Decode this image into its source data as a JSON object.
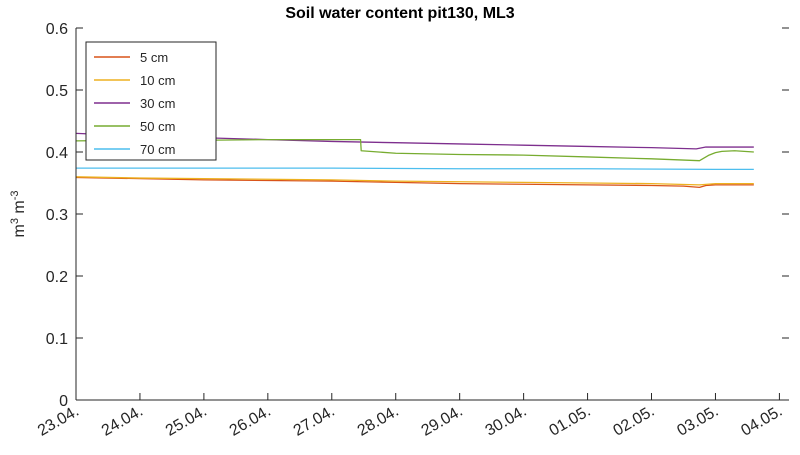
{
  "chart_data": {
    "type": "line",
    "title": "Soil water content pit130, ML3",
    "ylabel": {
      "base": "m",
      "exp1": "3",
      "mid": " m",
      "exp2": "-3"
    },
    "xlabel": "",
    "ylim": [
      0,
      0.6
    ],
    "yticks": [
      0,
      0.1,
      0.2,
      0.3,
      0.4,
      0.5,
      0.6
    ],
    "ytick_labels": [
      "0",
      "0.1",
      "0.2",
      "0.3",
      "0.4",
      "0.5",
      "0.6"
    ],
    "xlim": [
      0,
      11.15
    ],
    "xticks": [
      0,
      1,
      2,
      3,
      4,
      5,
      6,
      7,
      8,
      9,
      10,
      11
    ],
    "xtick_labels": [
      "23.04.",
      "24.04.",
      "25.04.",
      "26.04.",
      "27.04.",
      "28.04.",
      "29.04.",
      "30.04.",
      "01.05.",
      "02.05.",
      "03.05.",
      "04.05."
    ],
    "x_unit": "days from 23.04.",
    "legend_position": "top-left",
    "grid": false,
    "series": [
      {
        "name": "5 cm",
        "color": "#D95319",
        "x": [
          0,
          1,
          2,
          3,
          4,
          5,
          6,
          7,
          8,
          9,
          9.5,
          9.75,
          9.85,
          10,
          10.6
        ],
        "y": [
          0.359,
          0.357,
          0.355,
          0.354,
          0.353,
          0.351,
          0.349,
          0.348,
          0.347,
          0.346,
          0.345,
          0.343,
          0.346,
          0.347,
          0.347
        ]
      },
      {
        "name": "10 cm",
        "color": "#EDB120",
        "x": [
          0,
          1,
          2,
          3,
          4,
          5,
          6,
          7,
          8,
          9,
          9.75,
          10,
          10.6
        ],
        "y": [
          0.36,
          0.358,
          0.357,
          0.356,
          0.355,
          0.353,
          0.352,
          0.351,
          0.35,
          0.349,
          0.347,
          0.349,
          0.349
        ]
      },
      {
        "name": "30 cm",
        "color": "#7E2F8E",
        "x": [
          0,
          1,
          2,
          3,
          4,
          5,
          6,
          7,
          8,
          9,
          9.7,
          9.85,
          10.6
        ],
        "y": [
          0.43,
          0.426,
          0.423,
          0.42,
          0.417,
          0.415,
          0.413,
          0.411,
          0.409,
          0.407,
          0.405,
          0.408,
          0.408
        ]
      },
      {
        "name": "50 cm",
        "color": "#77AC30",
        "x": [
          0,
          1,
          2,
          3,
          4,
          4.45,
          4.46,
          5,
          6,
          7,
          8,
          9,
          9.75,
          9.9,
          10,
          10.1,
          10.3,
          10.6
        ],
        "y": [
          0.418,
          0.419,
          0.419,
          0.42,
          0.42,
          0.42,
          0.402,
          0.398,
          0.396,
          0.395,
          0.392,
          0.389,
          0.386,
          0.395,
          0.399,
          0.401,
          0.402,
          0.4
        ]
      },
      {
        "name": "70 cm",
        "color": "#4DBEEE",
        "x": [
          0,
          2,
          4,
          6,
          8,
          10,
          10.6
        ],
        "y": [
          0.374,
          0.374,
          0.374,
          0.373,
          0.373,
          0.372,
          0.372
        ]
      }
    ]
  }
}
